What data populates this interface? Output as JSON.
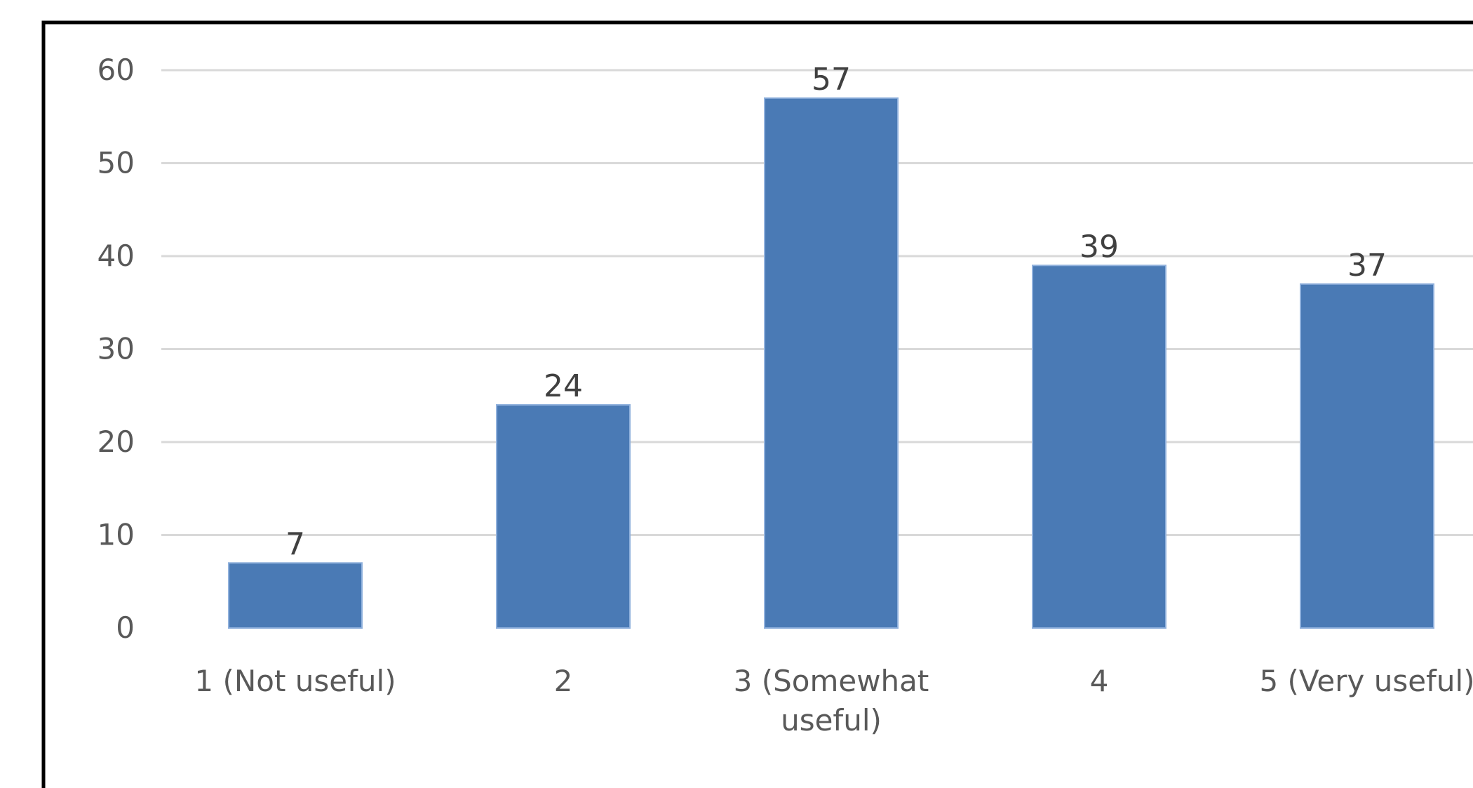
{
  "chart_data": {
    "type": "bar",
    "title": "",
    "xlabel": "",
    "ylabel": "",
    "categories": [
      [
        "1 (Not useful)"
      ],
      [
        "2"
      ],
      [
        "3 (Somewhat",
        "useful)"
      ],
      [
        "4"
      ],
      [
        "5 (Very useful)"
      ]
    ],
    "values": [
      7,
      24,
      57,
      39,
      37
    ],
    "data_labels": [
      "7",
      "24",
      "57",
      "39",
      "37"
    ],
    "ylim": [
      0,
      60
    ],
    "yticks": [
      0,
      10,
      20,
      30,
      40,
      50,
      60
    ],
    "ytick_labels": [
      "0",
      "10",
      "20",
      "30",
      "40",
      "50",
      "60"
    ],
    "grid": true,
    "legend": "none",
    "colors": {
      "bar": "#4a7ab5",
      "grid": "#d9d9d9",
      "frame": "#000000"
    }
  }
}
